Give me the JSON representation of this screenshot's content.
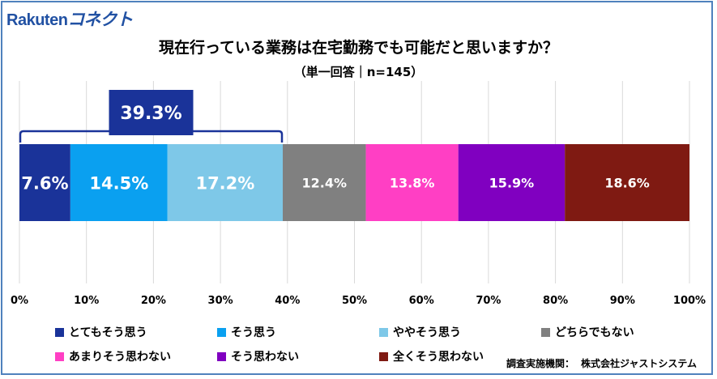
{
  "logo": {
    "part1": "Rakuten",
    "part2": "コネクト"
  },
  "chart_data": {
    "type": "bar",
    "orientation": "horizontal-stacked-100",
    "title": "現在行っている業務は在宅勤務でも可能だと思いますか？",
    "subtitle": "（単一回答｜n=145）",
    "xlim": [
      0,
      100
    ],
    "ticks": [
      "0%",
      "10%",
      "20%",
      "30%",
      "40%",
      "50%",
      "60%",
      "70%",
      "80%",
      "90%",
      "100%"
    ],
    "series": [
      {
        "name": "とてもそう思う",
        "value": 7.6,
        "label": "7.6%",
        "color": "#1a3399"
      },
      {
        "name": "そう思う",
        "value": 14.5,
        "label": "14.5%",
        "color": "#0aa0f0"
      },
      {
        "name": "ややそう思う",
        "value": 17.2,
        "label": "17.2%",
        "color": "#7ec8e8"
      },
      {
        "name": "どちらでもない",
        "value": 12.4,
        "label": "12.4%",
        "color": "#808080"
      },
      {
        "name": "あまりそう思わない",
        "value": 13.8,
        "label": "13.8%",
        "color": "#ff3fc4"
      },
      {
        "name": "そう思わない",
        "value": 15.9,
        "label": "15.9%",
        "color": "#8000c0"
      },
      {
        "name": "全くそう思わない",
        "value": 18.6,
        "label": "18.6%",
        "color": "#7f1a12"
      }
    ],
    "bracket": {
      "label": "39.3%",
      "from_series": 0,
      "to_series": 2,
      "color": "#1a3399"
    }
  },
  "source": {
    "label": "調査実施機関：",
    "value": "株式会社ジャストシステム"
  }
}
